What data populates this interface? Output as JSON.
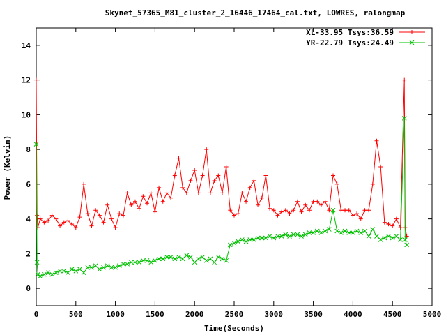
{
  "chart_data": {
    "type": "line",
    "title": "Skynet_57365_M81_cluster_2_16446_17464_cal.txt, LOWRES, ralongmap",
    "xlabel": "Time(Seconds)",
    "ylabel": "Power (Kelvin)",
    "xlim": [
      0,
      5000
    ],
    "ylim": [
      -1,
      15
    ],
    "x_ticks": [
      "0",
      "500",
      "1000",
      "1500",
      "2000",
      "2500",
      "3000",
      "3500",
      "4000",
      "4500",
      "5000"
    ],
    "y_ticks": [
      "0",
      "2",
      "4",
      "6",
      "8",
      "10",
      "12",
      "14"
    ],
    "grid": false,
    "legend_position": "top-right",
    "series": [
      {
        "name": "XL-33.95 Tsys:36.59",
        "color": "#ff0000",
        "marker": "plus",
        "x": [
          0,
          10,
          20,
          50,
          100,
          150,
          200,
          250,
          300,
          350,
          400,
          450,
          500,
          550,
          600,
          650,
          700,
          750,
          800,
          850,
          900,
          950,
          1000,
          1050,
          1100,
          1150,
          1200,
          1250,
          1300,
          1350,
          1400,
          1450,
          1500,
          1550,
          1600,
          1650,
          1700,
          1750,
          1800,
          1850,
          1900,
          1950,
          2000,
          2050,
          2100,
          2150,
          2200,
          2250,
          2300,
          2350,
          2400,
          2450,
          2500,
          2550,
          2600,
          2650,
          2700,
          2750,
          2800,
          2850,
          2900,
          2950,
          3000,
          3050,
          3100,
          3150,
          3200,
          3250,
          3300,
          3350,
          3400,
          3450,
          3500,
          3550,
          3600,
          3650,
          3700,
          3750,
          3800,
          3850,
          3900,
          3950,
          4000,
          4050,
          4100,
          4150,
          4200,
          4250,
          4300,
          4350,
          4400,
          4450,
          4500,
          4550,
          4600,
          4650,
          4660,
          4680
        ],
        "values": [
          12.0,
          4.2,
          3.5,
          4.0,
          3.8,
          3.9,
          4.2,
          4.0,
          3.6,
          3.8,
          3.9,
          3.7,
          3.5,
          4.1,
          6.0,
          4.3,
          3.6,
          4.5,
          4.2,
          3.8,
          4.8,
          4.0,
          3.5,
          4.3,
          4.2,
          5.5,
          4.8,
          5.0,
          4.6,
          5.3,
          4.9,
          5.5,
          4.4,
          5.8,
          5.0,
          5.5,
          5.2,
          6.5,
          7.5,
          5.8,
          5.5,
          6.2,
          6.8,
          5.5,
          6.5,
          8.0,
          5.5,
          6.2,
          6.5,
          5.5,
          7.0,
          4.5,
          4.2,
          4.3,
          5.5,
          5.0,
          5.8,
          6.2,
          4.8,
          5.2,
          6.5,
          4.6,
          4.5,
          4.2,
          4.4,
          4.5,
          4.3,
          4.5,
          5.0,
          4.4,
          4.8,
          4.5,
          5.0,
          5.0,
          4.8,
          5.0,
          4.5,
          6.5,
          6.0,
          4.5,
          4.5,
          4.5,
          4.2,
          4.3,
          4.0,
          4.5,
          4.5,
          6.0,
          8.5,
          7.0,
          3.8,
          3.7,
          3.6,
          4.0,
          3.5,
          12.0,
          3.5,
          3.0
        ]
      },
      {
        "name": "YR-22.79 Tsys:24.49",
        "color": "#00c000",
        "marker": "cross",
        "x": [
          0,
          10,
          20,
          50,
          100,
          150,
          200,
          250,
          300,
          350,
          400,
          450,
          500,
          550,
          600,
          650,
          700,
          750,
          800,
          850,
          900,
          950,
          1000,
          1050,
          1100,
          1150,
          1200,
          1250,
          1300,
          1350,
          1400,
          1450,
          1500,
          1550,
          1600,
          1650,
          1700,
          1750,
          1800,
          1850,
          1900,
          1950,
          2000,
          2050,
          2100,
          2150,
          2200,
          2250,
          2300,
          2350,
          2400,
          2450,
          2500,
          2550,
          2600,
          2650,
          2700,
          2750,
          2800,
          2850,
          2900,
          2950,
          3000,
          3050,
          3100,
          3150,
          3200,
          3250,
          3300,
          3350,
          3400,
          3450,
          3500,
          3550,
          3600,
          3650,
          3700,
          3750,
          3800,
          3850,
          3900,
          3950,
          4000,
          4050,
          4100,
          4150,
          4200,
          4250,
          4300,
          4350,
          4400,
          4450,
          4500,
          4550,
          4600,
          4650,
          4660,
          4680
        ],
        "values": [
          8.3,
          1.5,
          0.8,
          0.7,
          0.8,
          0.9,
          0.8,
          0.9,
          1.0,
          1.0,
          0.9,
          1.1,
          1.0,
          1.1,
          0.9,
          1.2,
          1.2,
          1.3,
          1.1,
          1.2,
          1.3,
          1.2,
          1.2,
          1.3,
          1.4,
          1.4,
          1.5,
          1.5,
          1.5,
          1.6,
          1.6,
          1.5,
          1.6,
          1.7,
          1.7,
          1.8,
          1.8,
          1.7,
          1.8,
          1.7,
          1.9,
          1.8,
          1.5,
          1.7,
          1.8,
          1.6,
          1.7,
          1.5,
          1.8,
          1.7,
          1.6,
          2.5,
          2.6,
          2.7,
          2.8,
          2.7,
          2.8,
          2.8,
          2.9,
          2.9,
          2.9,
          3.0,
          2.9,
          3.0,
          3.0,
          3.1,
          3.0,
          3.1,
          3.1,
          3.0,
          3.1,
          3.2,
          3.2,
          3.3,
          3.2,
          3.3,
          3.4,
          4.5,
          3.3,
          3.2,
          3.3,
          3.2,
          3.2,
          3.3,
          3.2,
          3.3,
          3.0,
          3.4,
          3.0,
          2.8,
          2.9,
          3.0,
          2.9,
          3.0,
          2.8,
          9.8,
          2.8,
          2.5
        ]
      }
    ]
  }
}
